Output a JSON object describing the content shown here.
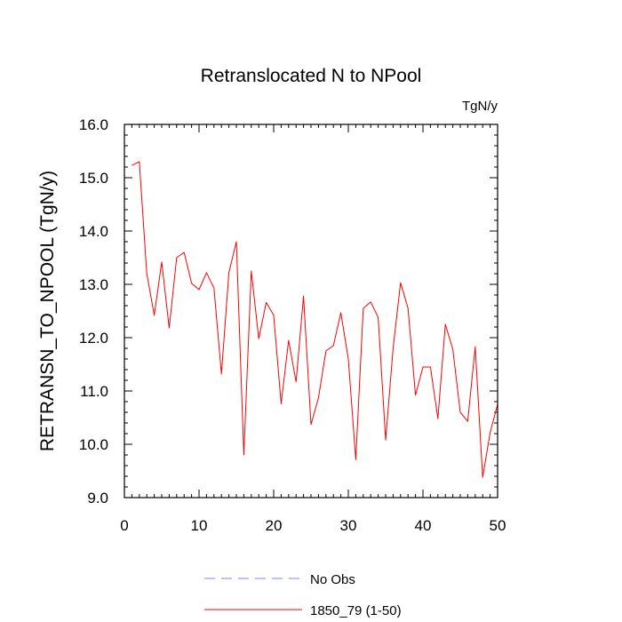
{
  "chart_data": {
    "type": "line",
    "title": "Retranslocated N to NPool",
    "units": "TgN/y",
    "ylabel": "RETRANSN_TO_NPOOL  (TgN/y)",
    "xlabel": "",
    "xlim": [
      0,
      50
    ],
    "ylim": [
      9.0,
      16.0
    ],
    "x_ticks": [
      0,
      10,
      20,
      30,
      40,
      50
    ],
    "y_ticks": [
      "9.0",
      "10.0",
      "11.0",
      "12.0",
      "13.0",
      "14.0",
      "15.0",
      "16.0"
    ],
    "legend_position": "bottom-center",
    "series": [
      {
        "name": "No Obs",
        "color": "#8080ff",
        "dash": true,
        "values": []
      },
      {
        "name": "1850_79 (1-50)",
        "color": "#ff0000",
        "dash": false,
        "x": [
          1,
          2,
          3,
          4,
          5,
          6,
          7,
          8,
          9,
          10,
          11,
          12,
          13,
          14,
          15,
          16,
          17,
          18,
          19,
          20,
          21,
          22,
          23,
          24,
          25,
          26,
          27,
          28,
          29,
          30,
          31,
          32,
          33,
          34,
          35,
          36,
          37,
          38,
          39,
          40,
          41,
          42,
          43,
          44,
          45,
          46,
          47,
          48,
          49,
          50
        ],
        "values": [
          15.23,
          15.3,
          13.2,
          12.42,
          13.42,
          12.18,
          13.5,
          13.6,
          13.02,
          12.9,
          13.22,
          12.93,
          11.32,
          13.22,
          13.8,
          9.8,
          13.25,
          11.98,
          12.66,
          12.42,
          10.76,
          11.95,
          11.17,
          12.78,
          10.37,
          10.87,
          11.75,
          11.85,
          12.47,
          11.6,
          9.71,
          12.55,
          12.67,
          12.38,
          10.08,
          11.8,
          13.03,
          12.55,
          10.92,
          11.45,
          11.45,
          10.48,
          12.25,
          11.78,
          10.6,
          10.43,
          11.83,
          9.38,
          10.22,
          10.75
        ]
      }
    ]
  }
}
